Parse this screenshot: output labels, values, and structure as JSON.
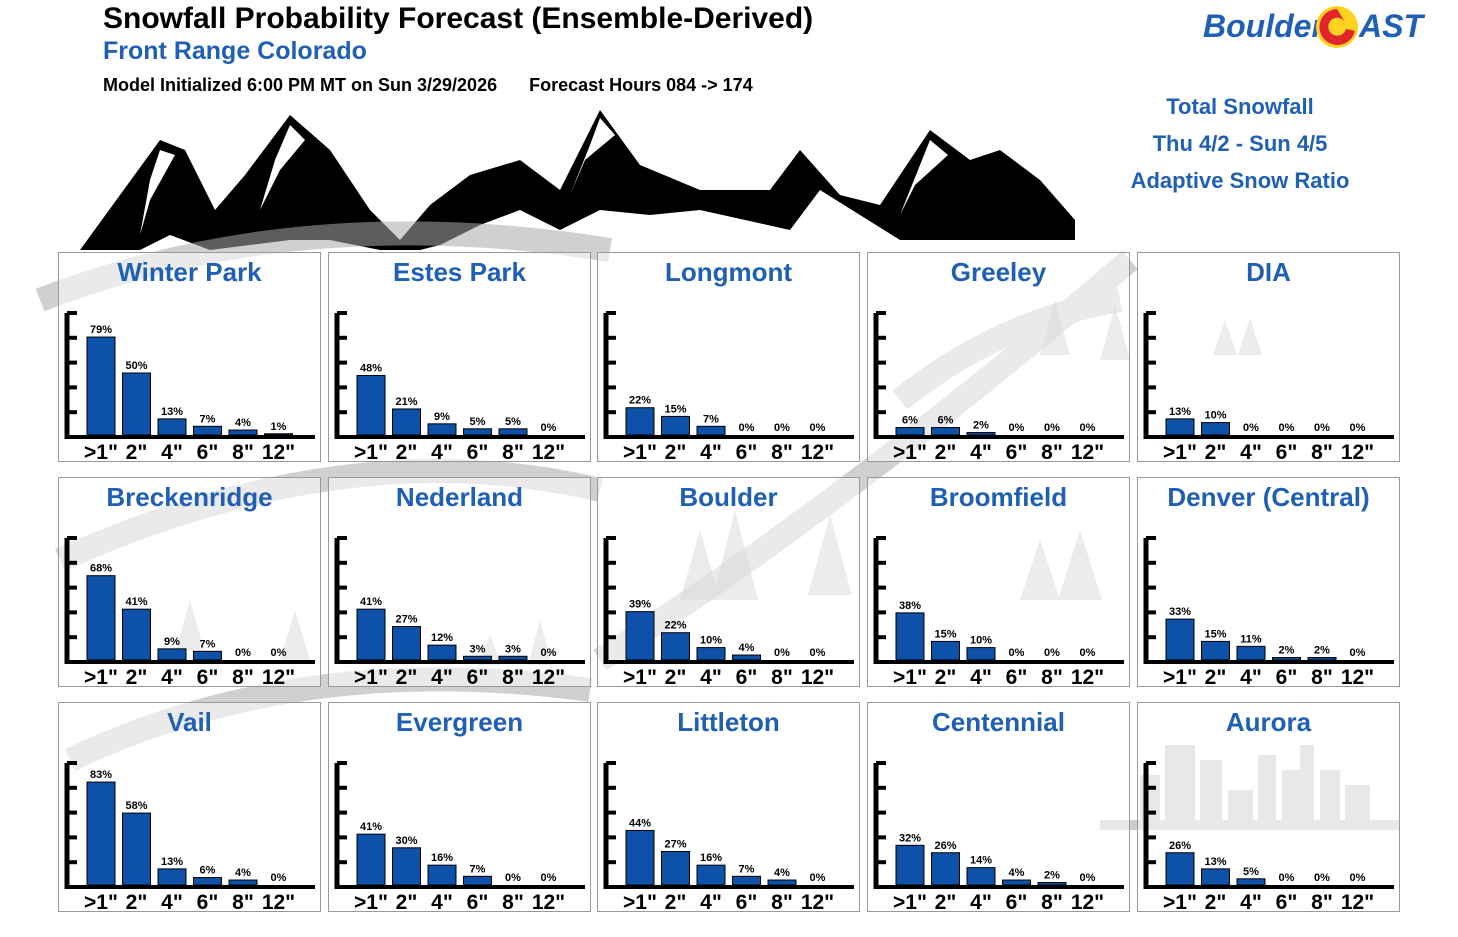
{
  "header": {
    "title": "Snowfall Probability Forecast (Ensemble-Derived)",
    "subtitle": "Front Range Colorado",
    "model_init": "Model Initialized 6:00 PM MT on Sun 3/29/2026",
    "forecast_hours": "Forecast Hours 084 -> 174"
  },
  "logo": {
    "left_text": "Boulder",
    "right_text": "AST"
  },
  "summary": {
    "line1": "Total Snowfall",
    "line2": "Thu 4/2 - Sun 4/5",
    "line3": "Adaptive Snow Ratio"
  },
  "colors": {
    "bar": "#0d52a8",
    "title": "#1f5fb4",
    "art": "#000000"
  },
  "chart_data": [
    {
      "type": "bar",
      "title": "Winter Park",
      "categories": [
        ">1\"",
        "2\"",
        "4\"",
        "6\"",
        "8\"",
        "12\""
      ],
      "values": [
        79,
        50,
        13,
        7,
        4,
        1
      ],
      "labels": [
        "79%",
        "50%",
        "13%",
        "7%",
        "4%",
        "1%"
      ],
      "ylim": [
        0,
        100
      ]
    },
    {
      "type": "bar",
      "title": "Estes Park",
      "categories": [
        ">1\"",
        "2\"",
        "4\"",
        "6\"",
        "8\"",
        "12\""
      ],
      "values": [
        48,
        21,
        9,
        5,
        5,
        0
      ],
      "labels": [
        "48%",
        "21%",
        "9%",
        "5%",
        "5%",
        "0%"
      ],
      "ylim": [
        0,
        100
      ]
    },
    {
      "type": "bar",
      "title": "Longmont",
      "categories": [
        ">1\"",
        "2\"",
        "4\"",
        "6\"",
        "8\"",
        "12\""
      ],
      "values": [
        22,
        15,
        7,
        0,
        0,
        0
      ],
      "labels": [
        "22%",
        "15%",
        "7%",
        "0%",
        "0%",
        "0%"
      ],
      "ylim": [
        0,
        100
      ]
    },
    {
      "type": "bar",
      "title": "Greeley",
      "categories": [
        ">1\"",
        "2\"",
        "4\"",
        "6\"",
        "8\"",
        "12\""
      ],
      "values": [
        6,
        6,
        2,
        0,
        0,
        0
      ],
      "labels": [
        "6%",
        "6%",
        "2%",
        "0%",
        "0%",
        "0%"
      ],
      "ylim": [
        0,
        100
      ]
    },
    {
      "type": "bar",
      "title": "DIA",
      "categories": [
        ">1\"",
        "2\"",
        "4\"",
        "6\"",
        "8\"",
        "12\""
      ],
      "values": [
        13,
        10,
        0,
        0,
        0,
        0
      ],
      "labels": [
        "13%",
        "10%",
        "0%",
        "0%",
        "0%",
        "0%"
      ],
      "ylim": [
        0,
        100
      ]
    },
    {
      "type": "bar",
      "title": "Breckenridge",
      "categories": [
        ">1\"",
        "2\"",
        "4\"",
        "6\"",
        "8\"",
        "12\""
      ],
      "values": [
        68,
        41,
        9,
        7,
        0,
        0
      ],
      "labels": [
        "68%",
        "41%",
        "9%",
        "7%",
        "0%",
        "0%"
      ],
      "ylim": [
        0,
        100
      ]
    },
    {
      "type": "bar",
      "title": "Nederland",
      "categories": [
        ">1\"",
        "2\"",
        "4\"",
        "6\"",
        "8\"",
        "12\""
      ],
      "values": [
        41,
        27,
        12,
        3,
        3,
        0
      ],
      "labels": [
        "41%",
        "27%",
        "12%",
        "3%",
        "3%",
        "0%"
      ],
      "ylim": [
        0,
        100
      ]
    },
    {
      "type": "bar",
      "title": "Boulder",
      "categories": [
        ">1\"",
        "2\"",
        "4\"",
        "6\"",
        "8\"",
        "12\""
      ],
      "values": [
        39,
        22,
        10,
        4,
        0,
        0
      ],
      "labels": [
        "39%",
        "22%",
        "10%",
        "4%",
        "0%",
        "0%"
      ],
      "ylim": [
        0,
        100
      ]
    },
    {
      "type": "bar",
      "title": "Broomfield",
      "categories": [
        ">1\"",
        "2\"",
        "4\"",
        "6\"",
        "8\"",
        "12\""
      ],
      "values": [
        38,
        15,
        10,
        0,
        0,
        0
      ],
      "labels": [
        "38%",
        "15%",
        "10%",
        "0%",
        "0%",
        "0%"
      ],
      "ylim": [
        0,
        100
      ]
    },
    {
      "type": "bar",
      "title": "Denver (Central)",
      "categories": [
        ">1\"",
        "2\"",
        "4\"",
        "6\"",
        "8\"",
        "12\""
      ],
      "values": [
        33,
        15,
        11,
        2,
        2,
        0
      ],
      "labels": [
        "33%",
        "15%",
        "11%",
        "2%",
        "2%",
        "0%"
      ],
      "ylim": [
        0,
        100
      ]
    },
    {
      "type": "bar",
      "title": "Vail",
      "categories": [
        ">1\"",
        "2\"",
        "4\"",
        "6\"",
        "8\"",
        "12\""
      ],
      "values": [
        83,
        58,
        13,
        6,
        4,
        0
      ],
      "labels": [
        "83%",
        "58%",
        "13%",
        "6%",
        "4%",
        "0%"
      ],
      "ylim": [
        0,
        100
      ]
    },
    {
      "type": "bar",
      "title": "Evergreen",
      "categories": [
        ">1\"",
        "2\"",
        "4\"",
        "6\"",
        "8\"",
        "12\""
      ],
      "values": [
        41,
        30,
        16,
        7,
        0,
        0
      ],
      "labels": [
        "41%",
        "30%",
        "16%",
        "7%",
        "0%",
        "0%"
      ],
      "ylim": [
        0,
        100
      ]
    },
    {
      "type": "bar",
      "title": "Littleton",
      "categories": [
        ">1\"",
        "2\"",
        "4\"",
        "6\"",
        "8\"",
        "12\""
      ],
      "values": [
        44,
        27,
        16,
        7,
        4,
        0
      ],
      "labels": [
        "44%",
        "27%",
        "16%",
        "7%",
        "4%",
        "0%"
      ],
      "ylim": [
        0,
        100
      ]
    },
    {
      "type": "bar",
      "title": "Centennial",
      "categories": [
        ">1\"",
        "2\"",
        "4\"",
        "6\"",
        "8\"",
        "12\""
      ],
      "values": [
        32,
        26,
        14,
        4,
        2,
        0
      ],
      "labels": [
        "32%",
        "26%",
        "14%",
        "4%",
        "2%",
        "0%"
      ],
      "ylim": [
        0,
        100
      ]
    },
    {
      "type": "bar",
      "title": "Aurora",
      "categories": [
        ">1\"",
        "2\"",
        "4\"",
        "6\"",
        "8\"",
        "12\""
      ],
      "values": [
        26,
        13,
        5,
        0,
        0,
        0
      ],
      "labels": [
        "26%",
        "13%",
        "5%",
        "0%",
        "0%",
        "0%"
      ],
      "ylim": [
        0,
        100
      ]
    }
  ]
}
